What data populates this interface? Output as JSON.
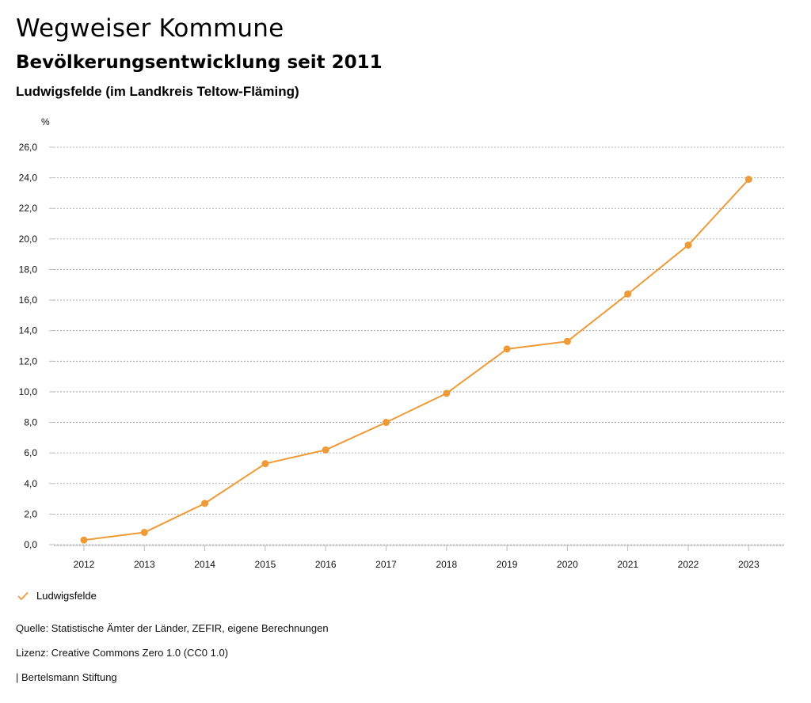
{
  "header": {
    "title": "Wegweiser Kommune",
    "subtitle": "Bevölkerungsentwicklung seit 2011",
    "location": "Ludwigsfelde (im Landkreis Teltow-Fläming)"
  },
  "colors": {
    "series": "#EE9A36",
    "grid": "#9a9a9a",
    "axis": "#bbbbbb"
  },
  "chart_data": {
    "type": "line",
    "title": "Bevölkerungsentwicklung seit 2011",
    "ylabel": "%",
    "xlabel": "",
    "ylim": [
      0,
      26
    ],
    "y_ticks": [
      0,
      2,
      4,
      6,
      8,
      10,
      12,
      14,
      16,
      18,
      20,
      22,
      24,
      26
    ],
    "y_tick_labels": [
      "0,0",
      "2,0",
      "4,0",
      "6,0",
      "8,0",
      "10,0",
      "12,0",
      "14,0",
      "16,0",
      "18,0",
      "20,0",
      "22,0",
      "24,0",
      "26,0"
    ],
    "categories": [
      "2012",
      "2013",
      "2014",
      "2015",
      "2016",
      "2017",
      "2018",
      "2019",
      "2020",
      "2021",
      "2022",
      "2023"
    ],
    "grid": true,
    "legend_position": "bottom-left",
    "series": [
      {
        "name": "Ludwigsfelde",
        "values": [
          0.3,
          0.8,
          2.7,
          5.3,
          6.2,
          8.0,
          9.9,
          12.8,
          13.3,
          16.4,
          19.6,
          23.9
        ]
      }
    ]
  },
  "legend": {
    "label": "Ludwigsfelde",
    "icon": "check-icon"
  },
  "footer": {
    "source": "Quelle: Statistische Ämter der Länder, ZEFIR, eigene Berechnungen",
    "license": "Lizenz: Creative Commons Zero 1.0 (CC0 1.0)",
    "credit": "| Bertelsmann Stiftung"
  }
}
